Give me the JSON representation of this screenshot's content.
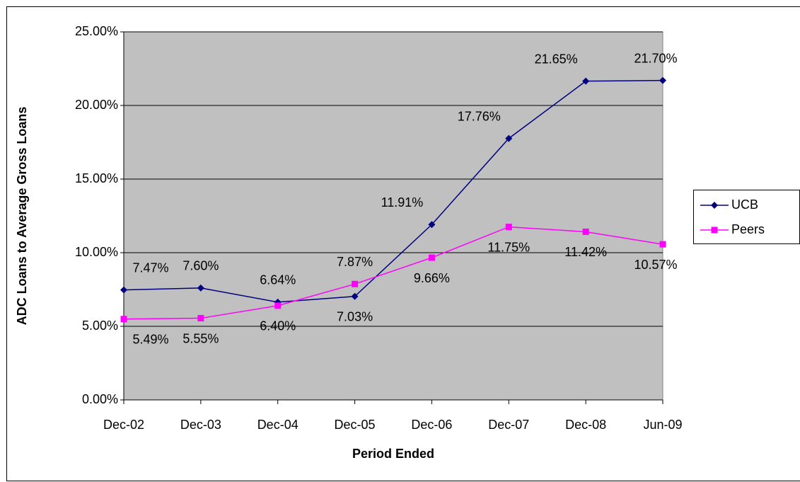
{
  "chart_data": {
    "type": "line",
    "x_label": "Period Ended",
    "y_label": "ADC Loans to Average Gross Loans",
    "categories": [
      "Dec-02",
      "Dec-03",
      "Dec-04",
      "Dec-05",
      "Dec-06",
      "Dec-07",
      "Dec-08",
      "Jun-09"
    ],
    "series": [
      {
        "name": "UCB",
        "color": "#000080",
        "marker": "diamond",
        "values": [
          7.47,
          7.6,
          6.64,
          7.03,
          11.91,
          17.76,
          21.65,
          21.7
        ],
        "value_labels": [
          "7.47%",
          "7.60%",
          "6.64%",
          "7.03%",
          "11.91%",
          "17.76%",
          "21.65%",
          "21.70%"
        ]
      },
      {
        "name": "Peers",
        "color": "#ff00ff",
        "marker": "square",
        "values": [
          5.49,
          5.55,
          6.4,
          7.87,
          9.66,
          11.75,
          11.42,
          10.57
        ],
        "value_labels": [
          "5.49%",
          "5.55%",
          "6.40%",
          "7.87%",
          "9.66%",
          "11.75%",
          "11.42%",
          "10.57%"
        ]
      }
    ],
    "ylim": [
      0,
      25
    ],
    "yticks": [
      {
        "value": 0,
        "label": "0.00%"
      },
      {
        "value": 5,
        "label": "5.00%"
      },
      {
        "value": 10,
        "label": "10.00%"
      },
      {
        "value": 15,
        "label": "15.00%"
      },
      {
        "value": 20,
        "label": "20.00%"
      },
      {
        "value": 25,
        "label": "25.00%"
      }
    ],
    "grid": true,
    "legend": "right"
  }
}
